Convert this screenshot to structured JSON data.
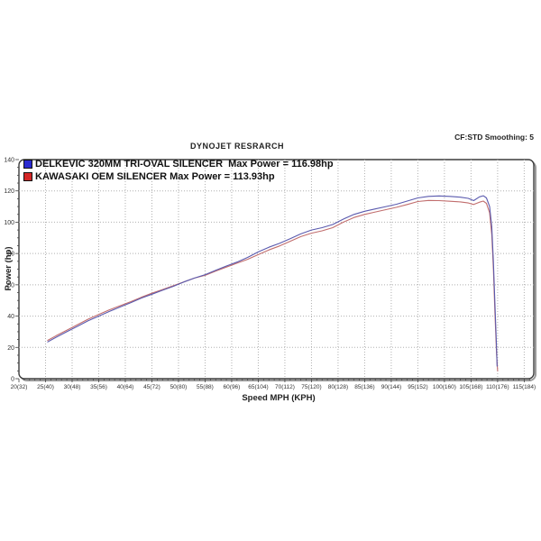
{
  "header": {
    "smoothing_label": "CF:STD Smoothing: 5",
    "title": "DYNOJET RESRARCH"
  },
  "legend": [
    {
      "label": "DELKEVIC 320MM TRI-OVAL SILENCER  Max Power = 116.98hp",
      "color": "#2a2ad0"
    },
    {
      "label": "KAWASAKI OEM SILENCER Max Power = 113.93hp",
      "color": "#d42727"
    }
  ],
  "axes": {
    "xlabel": "Speed MPH (KPH)",
    "ylabel": "Power (hp)"
  },
  "chart_data": {
    "type": "line",
    "title": "DYNOJET RESRARCH",
    "xlabel": "Speed MPH (KPH)",
    "ylabel": "Power (hp)",
    "xlim": [
      20,
      116.8
    ],
    "ylim": [
      0,
      140
    ],
    "grid": "dotted",
    "legend_position": "top-left-inside",
    "x_major_ticks": [
      20,
      25,
      30,
      35,
      40,
      45,
      50,
      55,
      60,
      65,
      70,
      75,
      80,
      85,
      90,
      95,
      100,
      105,
      110,
      115
    ],
    "x_tick_labels": [
      "20(32)",
      "25(40)",
      "30(48)",
      "35(56)",
      "40(64)",
      "45(72)",
      "50(80)",
      "55(88)",
      "60(96)",
      "65(104)",
      "70(112)",
      "75(120)",
      "80(128)",
      "85(136)",
      "90(144)",
      "95(152)",
      "100(160)",
      "105(168)",
      "110(176)",
      "115(184)"
    ],
    "y_major_ticks": [
      0,
      20,
      40,
      60,
      80,
      100,
      120,
      140
    ],
    "y_minor_step": 5,
    "x_minor_step": 1,
    "series": [
      {
        "name": "DELKEVIC 320MM TRI-OVAL SILENCER",
        "max_power_hp": 116.98,
        "color": "#5a5aae",
        "points": [
          [
            25.4,
            23.5
          ],
          [
            27,
            26.5
          ],
          [
            29,
            30
          ],
          [
            31,
            33.5
          ],
          [
            33,
            37
          ],
          [
            35,
            40
          ],
          [
            37,
            43
          ],
          [
            39,
            45.8
          ],
          [
            41,
            48.5
          ],
          [
            43,
            51.5
          ],
          [
            45,
            54
          ],
          [
            47,
            56.5
          ],
          [
            49,
            59
          ],
          [
            51,
            61.8
          ],
          [
            53,
            64.3
          ],
          [
            55,
            66.5
          ],
          [
            57,
            69.3
          ],
          [
            59,
            72
          ],
          [
            61,
            74.5
          ],
          [
            63,
            77.5
          ],
          [
            65,
            81
          ],
          [
            67,
            84
          ],
          [
            69,
            86.5
          ],
          [
            71,
            89.5
          ],
          [
            73,
            92.5
          ],
          [
            75,
            95
          ],
          [
            77,
            96.5
          ],
          [
            79,
            98.5
          ],
          [
            81,
            102
          ],
          [
            83,
            105
          ],
          [
            85,
            107
          ],
          [
            87,
            108.5
          ],
          [
            89,
            110
          ],
          [
            91,
            111.5
          ],
          [
            93,
            113.5
          ],
          [
            95,
            115.5
          ],
          [
            97,
            116.5
          ],
          [
            99,
            116.8
          ],
          [
            101,
            116.5
          ],
          [
            103,
            116
          ],
          [
            104.5,
            115.2
          ],
          [
            105.5,
            113.8
          ],
          [
            106.6,
            116.2
          ],
          [
            107.3,
            116.9
          ],
          [
            107.9,
            115.5
          ],
          [
            108.5,
            110
          ],
          [
            108.9,
            97
          ],
          [
            109.2,
            75
          ],
          [
            109.5,
            48
          ],
          [
            109.8,
            20
          ],
          [
            109.9,
            8
          ]
        ]
      },
      {
        "name": "KAWASAKI OEM SILENCER",
        "max_power_hp": 113.93,
        "color": "#c16d6d",
        "points": [
          [
            25.4,
            24.5
          ],
          [
            27,
            27.5
          ],
          [
            29,
            31
          ],
          [
            31,
            34.5
          ],
          [
            33,
            38
          ],
          [
            35,
            41
          ],
          [
            37,
            44
          ],
          [
            39,
            46.6
          ],
          [
            41,
            49.2
          ],
          [
            43,
            52
          ],
          [
            45,
            54.6
          ],
          [
            47,
            57
          ],
          [
            49,
            59.4
          ],
          [
            51,
            61.8
          ],
          [
            53,
            64.3
          ],
          [
            55,
            66
          ],
          [
            57,
            68.8
          ],
          [
            59,
            71.3
          ],
          [
            61,
            73.8
          ],
          [
            63,
            76.3
          ],
          [
            65,
            79.3
          ],
          [
            67,
            82.3
          ],
          [
            69,
            84.8
          ],
          [
            71,
            87.8
          ],
          [
            73,
            90.8
          ],
          [
            75,
            93
          ],
          [
            77,
            94.5
          ],
          [
            79,
            96.5
          ],
          [
            81,
            100
          ],
          [
            83,
            103
          ],
          [
            85,
            105
          ],
          [
            87,
            106.5
          ],
          [
            89,
            108
          ],
          [
            91,
            109.5
          ],
          [
            93,
            111.3
          ],
          [
            95,
            113.2
          ],
          [
            97,
            113.9
          ],
          [
            99,
            113.8
          ],
          [
            101,
            113.4
          ],
          [
            103,
            113
          ],
          [
            104.5,
            112.3
          ],
          [
            105.5,
            111.3
          ],
          [
            106.6,
            112.8
          ],
          [
            107.3,
            113.5
          ],
          [
            107.9,
            112
          ],
          [
            108.5,
            106
          ],
          [
            108.9,
            92
          ],
          [
            109.2,
            70
          ],
          [
            109.5,
            42
          ],
          [
            109.8,
            16
          ],
          [
            110,
            5
          ]
        ]
      }
    ]
  }
}
